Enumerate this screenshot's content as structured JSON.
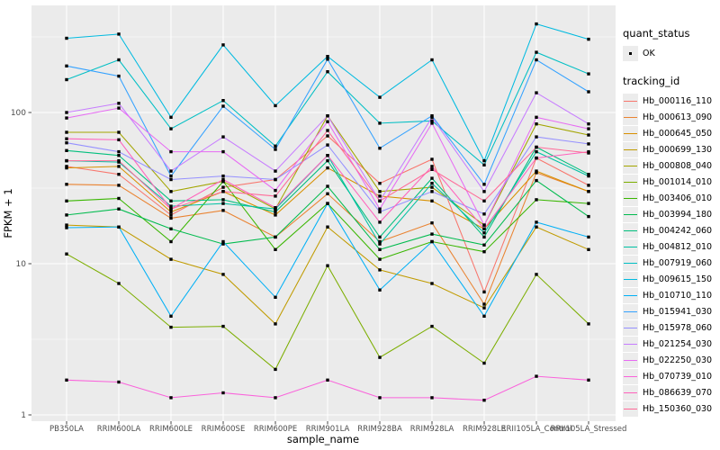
{
  "figure": {
    "panel_background": "#EBEBEB",
    "grid_color": "#FFFFFF",
    "tick_mark_color": "#333333",
    "tick_text_color": "#4D4D4D",
    "point_color": "#000000"
  },
  "axes": {
    "x_title": "sample_name",
    "y_title": "FPKM + 1",
    "y_tick_labels": [
      "1",
      "10",
      "100"
    ],
    "y_tick_values": [
      1,
      10,
      100
    ],
    "y_minor_values": [
      3.1623,
      31.623,
      316.23
    ]
  },
  "legend": {
    "quant_status_title": "quant_status",
    "quant_status_ok_label": "OK",
    "tracking_id_title": "tracking_id"
  },
  "chart_data": {
    "type": "line",
    "x_type": "categorical",
    "y_scale": "log10",
    "ylim": [
      0.92,
      510
    ],
    "grid": true,
    "legend_position": "right",
    "xlabel": "sample_name",
    "ylabel": "FPKM + 1",
    "categories": [
      "PB350LA",
      "RRIM600LA",
      "RRIM600LE",
      "RRIM600SE",
      "RRIM600PE",
      "RRIM901LA",
      "RRIM928BA",
      "RRIM928LA",
      "RRIM928LE",
      "RRII105LA_Control",
      "RRII105LA_Stressed"
    ],
    "quant_status": "OK",
    "series": [
      {
        "name": "Hb_000116_110",
        "color": "#F8766D",
        "values": [
          44,
          39,
          21,
          32,
          36,
          70,
          34,
          49,
          6.5,
          50,
          33
        ]
      },
      {
        "name": "Hb_000613_090",
        "color": "#EA8331",
        "values": [
          33.5,
          33,
          20,
          22.5,
          15,
          29,
          14,
          18.6,
          5.4,
          40,
          30
        ]
      },
      {
        "name": "Hb_000645_050",
        "color": "#D89000",
        "values": [
          43,
          44,
          22,
          30,
          21,
          43,
          28,
          26,
          17,
          41,
          30
        ]
      },
      {
        "name": "Hb_000699_130",
        "color": "#C09B00",
        "values": [
          18,
          17.5,
          10.7,
          8.5,
          4.0,
          17.5,
          9.1,
          7.4,
          5.1,
          17.5,
          12.4
        ]
      },
      {
        "name": "Hb_000808_040",
        "color": "#A3A500",
        "values": [
          74,
          74,
          30,
          35,
          23,
          95,
          30,
          32,
          18,
          84,
          71
        ]
      },
      {
        "name": "Hb_001014_010",
        "color": "#7CAE00",
        "values": [
          11.6,
          7.4,
          3.8,
          3.85,
          2.0,
          9.7,
          2.4,
          3.85,
          2.2,
          8.5,
          4.0
        ]
      },
      {
        "name": "Hb_003406_010",
        "color": "#39B600",
        "values": [
          26,
          27,
          14,
          35,
          12.4,
          25,
          10.7,
          14,
          12,
          26.5,
          25
        ]
      },
      {
        "name": "Hb_003994_180",
        "color": "#00BB4E",
        "values": [
          21,
          23,
          17,
          13.5,
          15,
          32.5,
          12.4,
          15.7,
          13.3,
          35.5,
          20.5
        ]
      },
      {
        "name": "Hb_004242_060",
        "color": "#00BF7D",
        "values": [
          56,
          52,
          26,
          26.5,
          22,
          48,
          15,
          36.7,
          15,
          59,
          39
        ]
      },
      {
        "name": "Hb_004812_010",
        "color": "#00C1A3",
        "values": [
          48,
          47,
          24,
          25,
          23,
          52,
          13.5,
          34,
          16,
          55,
          38
        ]
      },
      {
        "name": "Hb_007919_060",
        "color": "#00BFC4",
        "values": [
          165,
          223,
          78,
          120,
          60,
          186,
          85,
          88,
          45,
          250,
          180
        ]
      },
      {
        "name": "Hb_009615_150",
        "color": "#00BAE0",
        "values": [
          310,
          330,
          93,
          280,
          111,
          235,
          126,
          223,
          48,
          385,
          305
        ]
      },
      {
        "name": "Hb_010710_110",
        "color": "#00B0F6",
        "values": [
          17.3,
          17.5,
          4.5,
          14,
          6.0,
          25,
          6.7,
          14,
          4.5,
          18.8,
          15
        ]
      },
      {
        "name": "Hb_015941_030",
        "color": "#35A2FF",
        "values": [
          203,
          174,
          38,
          110,
          57,
          225,
          58,
          95,
          33.5,
          223,
          137
        ]
      },
      {
        "name": "Hb_015978_060",
        "color": "#9590FF",
        "values": [
          63,
          55,
          36,
          38,
          36,
          61,
          22,
          30,
          21.3,
          69,
          62
        ]
      },
      {
        "name": "Hb_021254_030",
        "color": "#C77CFF",
        "values": [
          100,
          115,
          41,
          69,
          41,
          95,
          26,
          93,
          30,
          135,
          84
        ]
      },
      {
        "name": "Hb_022250_030",
        "color": "#E76BF3",
        "values": [
          92,
          107,
          55,
          55,
          30.5,
          87,
          23,
          85,
          18,
          93,
          78
        ]
      },
      {
        "name": "Hb_070739_010",
        "color": "#FA62DB",
        "values": [
          1.7,
          1.65,
          1.3,
          1.4,
          1.3,
          1.7,
          1.3,
          1.3,
          1.25,
          1.8,
          1.7
        ]
      },
      {
        "name": "Hb_086639_070",
        "color": "#FF62BC",
        "values": [
          67,
          66,
          23,
          36,
          23.5,
          52,
          18.8,
          44,
          17,
          50,
          55
        ]
      },
      {
        "name": "Hb_150360_030",
        "color": "#FF6A98",
        "values": [
          48,
          48,
          23,
          30,
          28,
          76,
          26,
          42,
          26,
          59,
          54
        ]
      }
    ]
  }
}
